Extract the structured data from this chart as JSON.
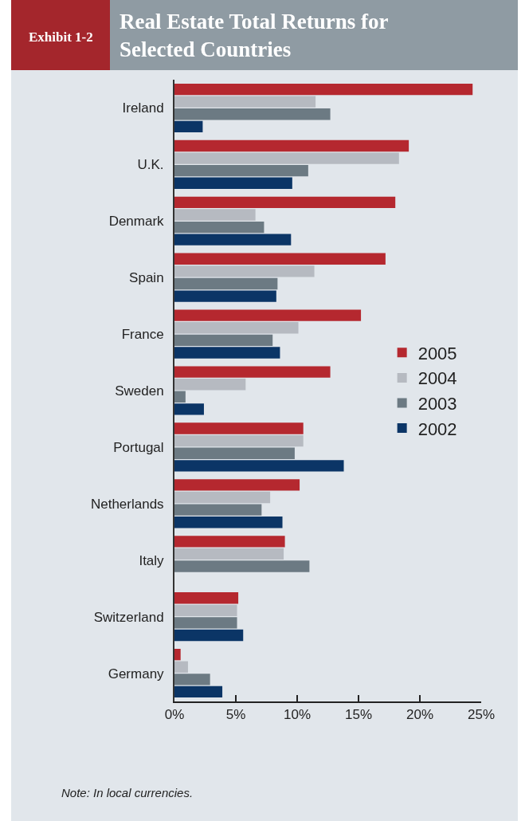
{
  "chart_data": {
    "type": "bar",
    "orientation": "horizontal",
    "title": "Real Estate Total Returns for Selected Countries",
    "subtitle": "Exhibit 1-2",
    "categories": [
      "Ireland",
      "U.K.",
      "Denmark",
      "Spain",
      "France",
      "Sweden",
      "Portugal",
      "Netherlands",
      "Italy",
      "Switzerland",
      "Germany"
    ],
    "series": [
      {
        "name": "2005",
        "color": "#b5282f",
        "values": [
          24.3,
          19.1,
          18.0,
          17.2,
          15.2,
          12.7,
          10.5,
          10.2,
          9.0,
          5.2,
          0.5
        ]
      },
      {
        "name": "2004",
        "color": "#b6bac1",
        "values": [
          11.5,
          18.3,
          6.6,
          11.4,
          10.1,
          5.8,
          10.5,
          7.8,
          8.9,
          5.1,
          1.1
        ]
      },
      {
        "name": "2003",
        "color": "#6c7a83",
        "values": [
          12.7,
          10.9,
          7.3,
          8.4,
          8.0,
          0.9,
          9.8,
          7.1,
          11.0,
          5.1,
          2.9
        ]
      },
      {
        "name": "2002",
        "color": "#0b3566",
        "values": [
          2.3,
          9.6,
          9.5,
          8.3,
          8.6,
          2.4,
          13.8,
          8.8,
          null,
          5.6,
          3.9
        ]
      }
    ],
    "xlim": [
      0,
      25
    ],
    "xticks": [
      {
        "value": 0,
        "label": "0%"
      },
      {
        "value": 5,
        "label": "5%"
      },
      {
        "value": 10,
        "label": "10%"
      },
      {
        "value": 15,
        "label": "15%"
      },
      {
        "value": 20,
        "label": "20%"
      },
      {
        "value": 25,
        "label": "25%"
      }
    ],
    "legend": "right",
    "grid": false,
    "annotations": [
      "Note: In local currencies."
    ]
  }
}
